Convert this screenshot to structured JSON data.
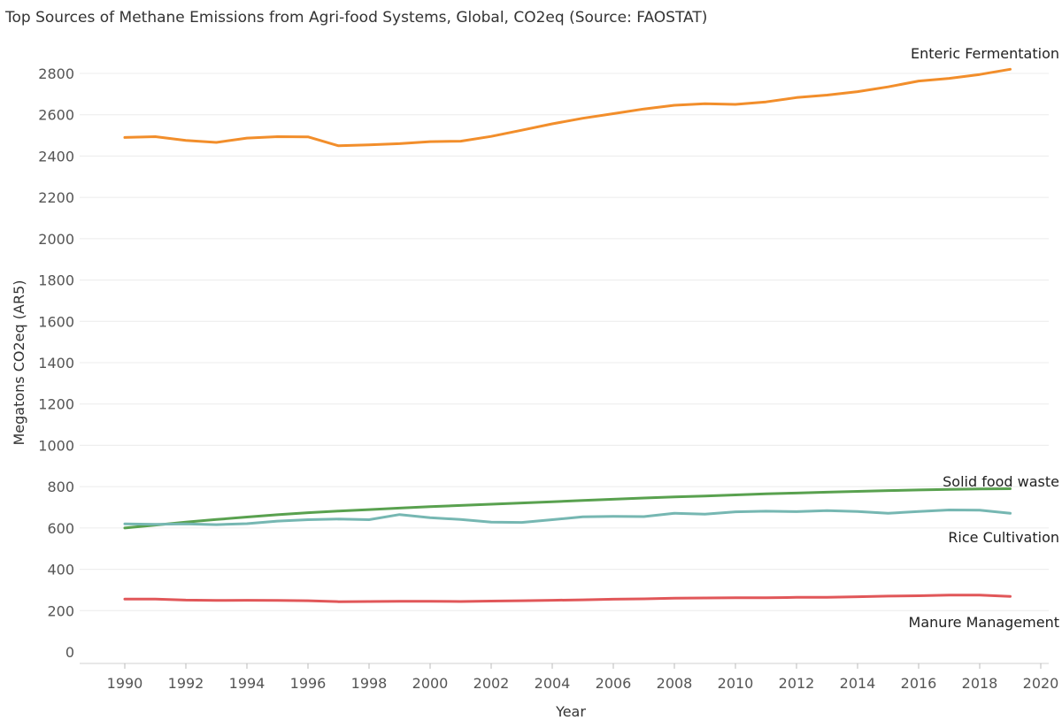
{
  "chart_data": {
    "type": "line",
    "title": "Top Sources of Methane Emissions from Agri-food Systems, Global, CO2eq (Source: FAOSTAT)",
    "xlabel": "Year",
    "ylabel": "Megatons CO2eq (AR5)",
    "xlim": [
      1989,
      2020
    ],
    "ylim": [
      0,
      2900
    ],
    "x_ticks": [
      1990,
      1992,
      1994,
      1996,
      1998,
      2000,
      2002,
      2004,
      2006,
      2008,
      2010,
      2012,
      2014,
      2016,
      2018,
      2020
    ],
    "y_ticks": [
      0,
      200,
      400,
      600,
      800,
      1000,
      1200,
      1400,
      1600,
      1800,
      2000,
      2200,
      2400,
      2600,
      2800
    ],
    "grid": true,
    "legend": "direct labels at line ends",
    "x": [
      1990,
      1991,
      1992,
      1993,
      1994,
      1995,
      1996,
      1997,
      1998,
      1999,
      2000,
      2001,
      2002,
      2003,
      2004,
      2005,
      2006,
      2007,
      2008,
      2009,
      2010,
      2011,
      2012,
      2013,
      2014,
      2015,
      2016,
      2017,
      2018,
      2019
    ],
    "series": [
      {
        "name": "Enteric Fermentation",
        "color": "#f28e2b",
        "values": [
          2490,
          2494,
          2476,
          2466,
          2487,
          2494,
          2493,
          2450,
          2454,
          2460,
          2470,
          2472,
          2495,
          2525,
          2556,
          2583,
          2605,
          2628,
          2646,
          2653,
          2650,
          2662,
          2683,
          2695,
          2712,
          2735,
          2763,
          2776,
          2795,
          2820
        ]
      },
      {
        "name": "Solid food waste",
        "color": "#59a14f",
        "values": [
          600,
          614,
          628,
          641,
          653,
          664,
          674,
          682,
          689,
          696,
          703,
          709,
          715,
          721,
          727,
          733,
          739,
          745,
          750,
          755,
          760,
          765,
          769,
          773,
          777,
          781,
          784,
          787,
          789,
          790
        ]
      },
      {
        "name": "Rice Cultivation",
        "color": "#76b7b2",
        "values": [
          620,
          618,
          620,
          616,
          621,
          633,
          640,
          643,
          640,
          665,
          650,
          641,
          628,
          627,
          640,
          654,
          656,
          655,
          671,
          667,
          678,
          681,
          679,
          684,
          680,
          671,
          680,
          687,
          686,
          671
        ]
      },
      {
        "name": "Manure Management",
        "color": "#e15759",
        "values": [
          256,
          256,
          251,
          249,
          250,
          249,
          248,
          243,
          244,
          245,
          245,
          244,
          246,
          248,
          250,
          252,
          255,
          257,
          260,
          261,
          262,
          262,
          264,
          264,
          267,
          270,
          272,
          275,
          275,
          269
        ]
      }
    ]
  }
}
